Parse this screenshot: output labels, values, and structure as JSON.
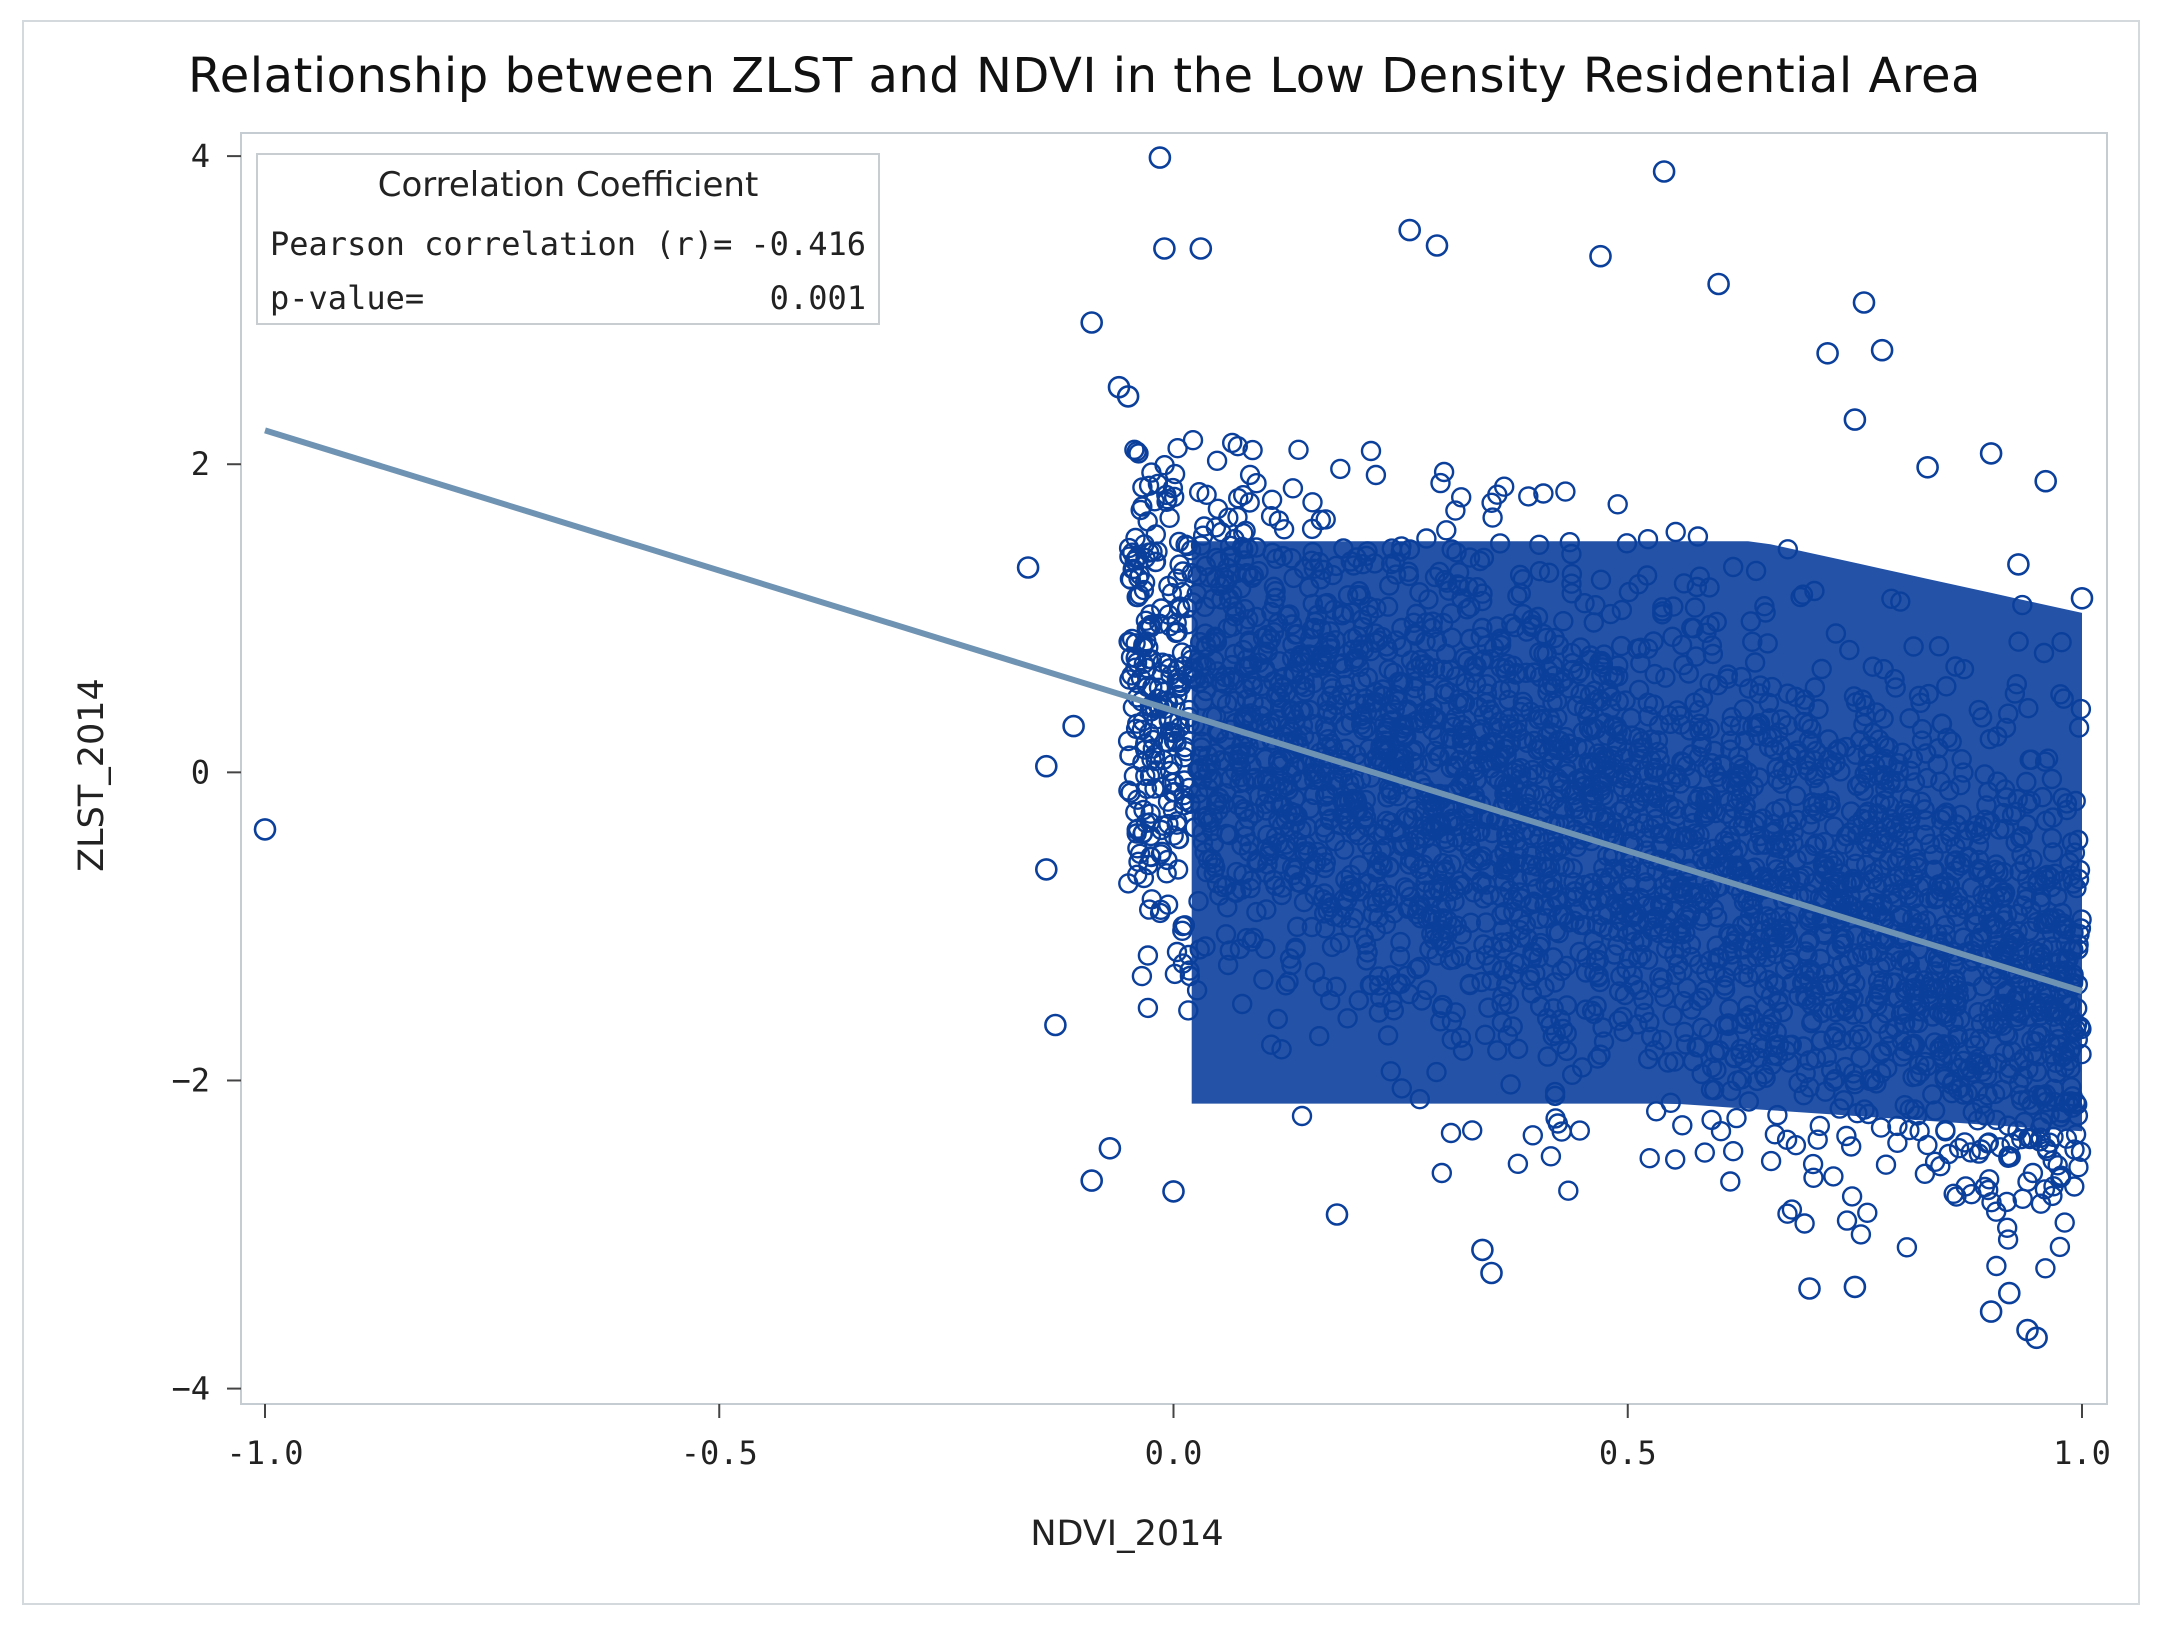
{
  "chart_data": {
    "type": "scatter",
    "title": "Relationship between ZLST and NDVI in the Low Density Residential Area",
    "xlabel": "NDVI_2014",
    "ylabel": "ZLST_2014",
    "xlim": [
      -1.0,
      1.0
    ],
    "ylim": [
      -4.1,
      4.15
    ],
    "xticks": [
      -1.0,
      -0.5,
      0.0,
      0.5,
      1.0
    ],
    "xtick_labels": [
      "-1.0",
      "-0.5",
      "0.0",
      "0.5",
      "1.0"
    ],
    "yticks": [
      4,
      2,
      0,
      -2,
      -4
    ],
    "ytick_labels": [
      "4",
      "2",
      "0",
      "−2",
      "−4"
    ],
    "grid": false,
    "marker": "open-circle",
    "point_color": "#0b3f9c",
    "line_color": "#6f93b3",
    "regression_line": {
      "x": [
        -1.0,
        1.0
      ],
      "y": [
        2.22,
        -1.42
      ]
    },
    "legend": {
      "placement": "top-left",
      "title": "Correlation Coefficient",
      "rows": [
        {
          "label": "Pearson correlation (r)=",
          "value": "-0.416"
        },
        {
          "label": "p-value=",
          "value": "0.001"
        }
      ]
    },
    "cloud": {
      "x_range": [
        -0.05,
        1.0
      ],
      "y_range": [
        -3.7,
        2.5
      ],
      "note_points": "dense cloud of observations"
    },
    "outliers": [
      {
        "x": -1.0,
        "y": -0.37
      },
      {
        "x": -0.015,
        "y": 3.99
      },
      {
        "x": -0.01,
        "y": 3.4
      },
      {
        "x": 0.03,
        "y": 3.4
      },
      {
        "x": 0.54,
        "y": 3.9
      },
      {
        "x": 0.26,
        "y": 3.52
      },
      {
        "x": 0.29,
        "y": 3.42
      },
      {
        "x": 0.47,
        "y": 3.35
      },
      {
        "x": 0.6,
        "y": 3.17
      },
      {
        "x": 0.76,
        "y": 3.05
      },
      {
        "x": -0.09,
        "y": 2.92
      },
      {
        "x": 0.72,
        "y": 2.72
      },
      {
        "x": 0.78,
        "y": 2.74
      },
      {
        "x": -0.06,
        "y": 2.5
      },
      {
        "x": -0.05,
        "y": 2.44
      },
      {
        "x": 0.75,
        "y": 2.29
      },
      {
        "x": 0.83,
        "y": 1.98
      },
      {
        "x": 0.9,
        "y": 2.07
      },
      {
        "x": 0.96,
        "y": 1.89
      },
      {
        "x": -0.16,
        "y": 1.33
      },
      {
        "x": -0.11,
        "y": 0.3
      },
      {
        "x": -0.14,
        "y": 0.04
      },
      {
        "x": -0.14,
        "y": -0.63
      },
      {
        "x": -0.13,
        "y": -1.64
      },
      {
        "x": -0.09,
        "y": -2.65
      },
      {
        "x": -0.07,
        "y": -2.44
      },
      {
        "x": 0.0,
        "y": -2.72
      },
      {
        "x": 0.35,
        "y": -3.25
      },
      {
        "x": 0.34,
        "y": -3.1
      },
      {
        "x": 0.75,
        "y": -3.34
      },
      {
        "x": 0.9,
        "y": -3.5
      },
      {
        "x": 0.92,
        "y": -3.38
      },
      {
        "x": 0.94,
        "y": -3.62
      },
      {
        "x": 0.95,
        "y": -3.67
      },
      {
        "x": 1.0,
        "y": 1.13
      },
      {
        "x": 0.93,
        "y": 1.35
      },
      {
        "x": 0.18,
        "y": -2.87
      },
      {
        "x": 0.7,
        "y": -3.35
      }
    ]
  }
}
